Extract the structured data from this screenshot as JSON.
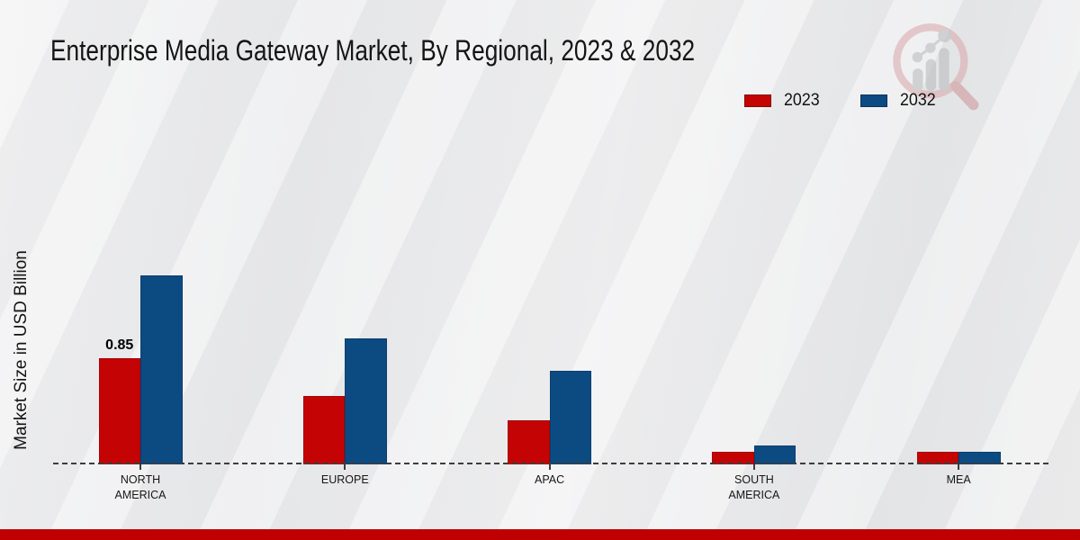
{
  "page": {
    "background_color": "#ececee",
    "footer_stripe_color": "#c00000",
    "watermark": "market-research-logo"
  },
  "chart_data": {
    "type": "bar",
    "title": "Enterprise Media Gateway Market, By Regional, 2023 & 2032",
    "ylabel": "Market Size in USD Billion",
    "xlabel": "",
    "categories": [
      "NORTH AMERICA",
      "EUROPE",
      "APAC",
      "SOUTH AMERICA",
      "MEA"
    ],
    "series": [
      {
        "name": "2023",
        "color": "#c40404",
        "values": [
          0.85,
          0.55,
          0.35,
          0.1,
          0.1
        ]
      },
      {
        "name": "2032",
        "color": "#0c4a82",
        "values": [
          1.51,
          1.01,
          0.75,
          0.15,
          0.1
        ]
      }
    ],
    "shown_value_labels": [
      {
        "series": "2023",
        "category": "NORTH AMERICA",
        "text": "0.85"
      }
    ],
    "baseline_style": "dashed",
    "grid": false,
    "legend_position": "top-right",
    "ylim_note": "no y tick labels shown; values estimated from 0.85 reference bar"
  }
}
